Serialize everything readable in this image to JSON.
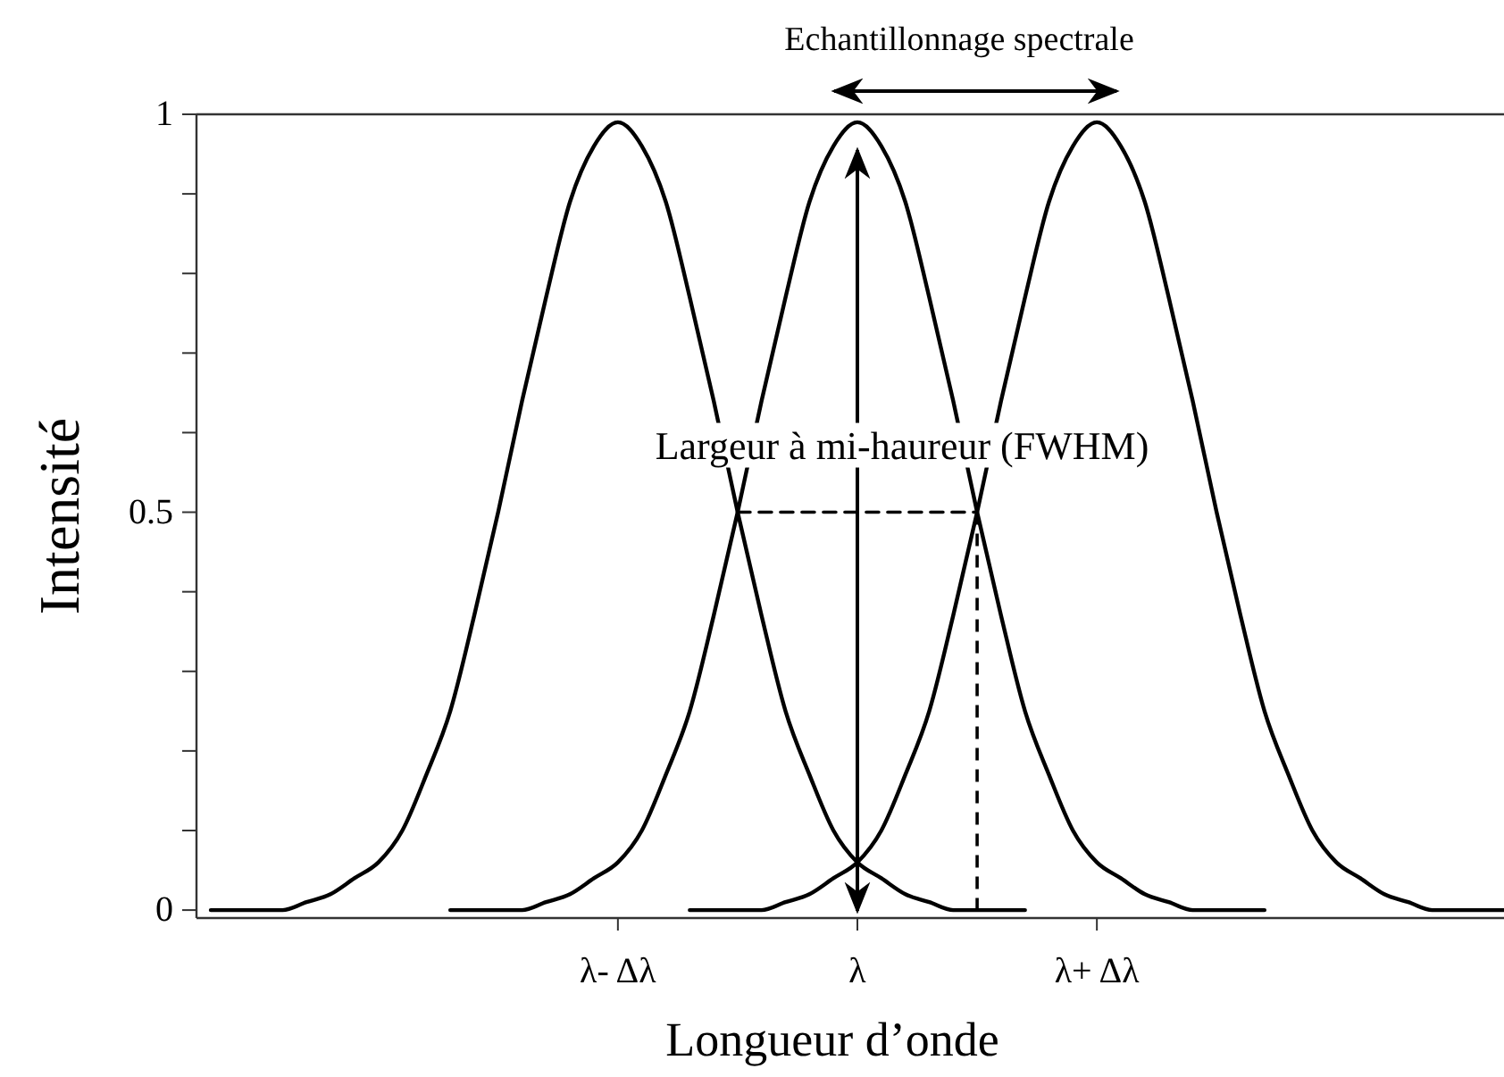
{
  "chart_data": {
    "type": "line",
    "xlabel": "Longueur d’onde",
    "ylabel": "Intensité",
    "categories": [
      null,
      null,
      null,
      null,
      null,
      null,
      null,
      null,
      null,
      null,
      null,
      null,
      null,
      null,
      null,
      null,
      null,
      "λ- Δλ",
      null,
      null,
      null,
      null,
      null,
      null,
      null,
      null,
      null,
      "λ",
      null,
      null,
      null,
      null,
      null,
      null,
      null,
      null,
      null,
      "λ+ Δλ",
      null,
      null,
      null,
      null,
      null,
      null,
      null,
      null,
      null,
      null,
      null,
      null,
      null,
      null,
      null,
      null,
      null
    ],
    "ylim": [
      -0.01,
      1
    ],
    "yticks": [
      0,
      {
        "value": 0.1,
        "label": null
      },
      {
        "value": 0.2,
        "label": null
      },
      {
        "value": 0.3,
        "label": null
      },
      {
        "value": 0.4,
        "label": null
      },
      0.5,
      {
        "value": 0.6,
        "label": null
      },
      {
        "value": 0.7,
        "label": null
      },
      {
        "value": 0.8,
        "label": null
      },
      {
        "value": 0.9,
        "label": null
      },
      1
    ],
    "annotations": [
      "Echantillonnage spectrale",
      {
        "text": "Largeur à mi-haureur (FWHM)",
        "x": "λ",
        "y": 0.5
      }
    ],
    "series": [
      {
        "color": "#000000",
        "values": [
          0,
          0,
          0,
          0,
          0.01,
          0.02,
          0.04,
          0.06,
          0.1,
          0.17,
          0.25,
          0.37,
          0.5,
          0.64,
          0.77,
          0.89,
          0.96,
          0.99,
          0.96,
          0.89,
          0.77,
          0.64,
          0.5,
          0.37,
          0.25,
          0.17,
          0.1,
          0.06,
          0.04,
          0.02,
          0.01,
          0,
          0,
          0,
          0,
          null,
          null,
          null,
          null,
          null,
          null,
          null,
          null,
          null,
          null,
          null,
          null,
          null,
          null,
          null,
          null,
          null,
          null,
          null,
          null
        ]
      },
      {
        "color": "#000000",
        "values": [
          null,
          null,
          null,
          null,
          null,
          null,
          null,
          null,
          null,
          null,
          0,
          0,
          0,
          0,
          0.01,
          0.02,
          0.04,
          0.06,
          0.1,
          0.17,
          0.25,
          0.37,
          0.5,
          0.64,
          0.77,
          0.89,
          0.96,
          0.99,
          0.96,
          0.89,
          0.77,
          0.64,
          0.5,
          0.37,
          0.25,
          0.17,
          0.1,
          0.06,
          0.04,
          0.02,
          0.01,
          0,
          0,
          0,
          0,
          null,
          null,
          null,
          null,
          null,
          null,
          null,
          null,
          null,
          null
        ]
      },
      {
        "color": "#000000",
        "values": [
          null,
          null,
          null,
          null,
          null,
          null,
          null,
          null,
          null,
          null,
          null,
          null,
          null,
          null,
          null,
          null,
          null,
          null,
          null,
          null,
          0,
          0,
          0,
          0,
          0.01,
          0.02,
          0.04,
          0.06,
          0.1,
          0.17,
          0.25,
          0.37,
          0.5,
          0.64,
          0.77,
          0.89,
          0.96,
          0.99,
          0.96,
          0.89,
          0.77,
          0.64,
          0.5,
          0.37,
          0.25,
          0.17,
          0.1,
          0.06,
          0.04,
          0.02,
          0.01,
          0,
          0,
          0,
          0
        ]
      },
      {
        "color": "#000000",
        "line_style": "dashed",
        "values": [
          null,
          null,
          null,
          null,
          null,
          null,
          null,
          null,
          null,
          null,
          null,
          null,
          null,
          null,
          null,
          null,
          null,
          null,
          null,
          null,
          null,
          null,
          0.5,
          0.5,
          0.5,
          0.5,
          0.5,
          0.5,
          0.5,
          0.5,
          0.5,
          0.5,
          0.5,
          null,
          null,
          null,
          null,
          null,
          null,
          null,
          null,
          null,
          null,
          null,
          null,
          null,
          null,
          null,
          null,
          null,
          null,
          null,
          null,
          null,
          null
        ]
      }
    ]
  }
}
